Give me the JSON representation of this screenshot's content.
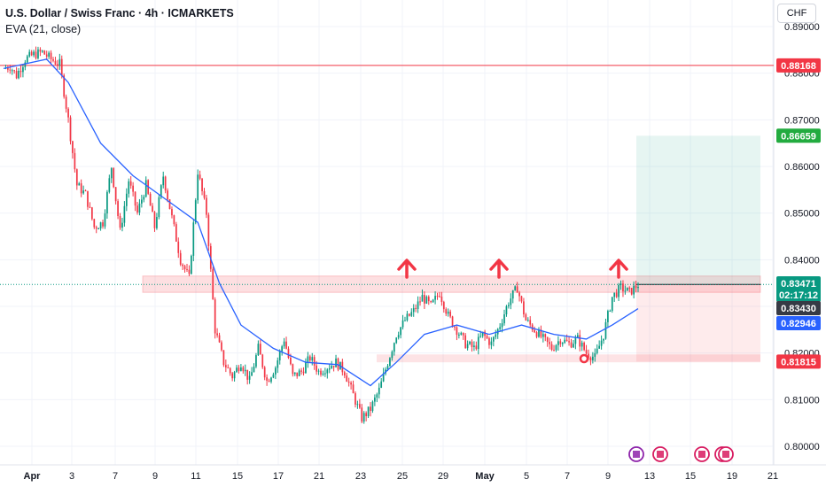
{
  "header": {
    "title": "U.S. Dollar / Swiss Franc · 4h · ICMARKETS",
    "indicator": "EVA (21, close)"
  },
  "currency_button": "CHF",
  "colors": {
    "up": "#089981",
    "down": "#f23645",
    "ema": "#2962ff",
    "resistance_line": "#f23645",
    "target_green": "#089981",
    "stop_red": "#f23645",
    "arrow": "#f23645"
  },
  "price_tags": {
    "top_level": "0.88168",
    "target": "0.86659",
    "last": "0.83471",
    "countdown": "02:17:12",
    "prev": "0.83430",
    "ema": "0.82946",
    "stop": "0.81815"
  },
  "chart_data": {
    "type": "candlestick",
    "title": "U.S. Dollar / Swiss Franc · 4h · ICMARKETS",
    "timeframe": "4h",
    "ylim": [
      0.7975,
      0.8995
    ],
    "y_ticks": [
      "0.80000",
      "0.81000",
      "0.82000",
      "0.83000",
      "0.84000",
      "0.85000",
      "0.86000",
      "0.87000",
      "0.88000",
      "0.89000"
    ],
    "x_ticks": [
      "Apr",
      "3",
      "7",
      "9",
      "11",
      "15",
      "17",
      "21",
      "23",
      "25",
      "29",
      "May",
      "5",
      "7",
      "9",
      "13",
      "15",
      "19",
      "21"
    ],
    "grid": true,
    "series": [
      {
        "name": "USDCHF",
        "close_path": [
          [
            0,
            0.881
          ],
          [
            3,
            0.8815
          ],
          [
            6,
            0.8795
          ],
          [
            10,
            0.883
          ],
          [
            14,
            0.884
          ],
          [
            18,
            0.8845
          ],
          [
            22,
            0.883
          ],
          [
            26,
            0.882
          ],
          [
            30,
            0.87
          ],
          [
            34,
            0.856
          ],
          [
            38,
            0.854
          ],
          [
            42,
            0.847
          ],
          [
            46,
            0.848
          ],
          [
            50,
            0.86
          ],
          [
            54,
            0.846
          ],
          [
            58,
            0.857
          ],
          [
            62,
            0.85
          ],
          [
            66,
            0.856
          ],
          [
            70,
            0.847
          ],
          [
            74,
            0.858
          ],
          [
            78,
            0.849
          ],
          [
            82,
            0.84
          ],
          [
            86,
            0.836
          ],
          [
            90,
            0.859
          ],
          [
            94,
            0.85
          ],
          [
            98,
            0.825
          ],
          [
            102,
            0.818
          ],
          [
            106,
            0.815
          ],
          [
            110,
            0.818
          ],
          [
            114,
            0.814
          ],
          [
            118,
            0.821
          ],
          [
            122,
            0.814
          ],
          [
            126,
            0.817
          ],
          [
            130,
            0.823
          ],
          [
            134,
            0.815
          ],
          [
            138,
            0.816
          ],
          [
            142,
            0.819
          ],
          [
            146,
            0.816
          ],
          [
            150,
            0.817
          ],
          [
            154,
            0.818
          ],
          [
            158,
            0.816
          ],
          [
            162,
            0.811
          ],
          [
            166,
            0.806
          ],
          [
            170,
            0.808
          ],
          [
            174,
            0.812
          ],
          [
            178,
            0.818
          ],
          [
            182,
            0.824
          ],
          [
            186,
            0.827
          ],
          [
            190,
            0.829
          ],
          [
            194,
            0.832
          ],
          [
            198,
            0.83
          ],
          [
            202,
            0.833
          ],
          [
            206,
            0.828
          ],
          [
            210,
            0.825
          ],
          [
            214,
            0.822
          ],
          [
            218,
            0.821
          ],
          [
            222,
            0.824
          ],
          [
            226,
            0.822
          ],
          [
            230,
            0.826
          ],
          [
            234,
            0.831
          ],
          [
            238,
            0.834
          ],
          [
            242,
            0.827
          ],
          [
            246,
            0.825
          ],
          [
            250,
            0.823
          ],
          [
            254,
            0.821
          ],
          [
            258,
            0.823
          ],
          [
            262,
            0.822
          ],
          [
            266,
            0.823
          ],
          [
            270,
            0.82
          ],
          [
            274,
            0.819
          ],
          [
            278,
            0.824
          ],
          [
            282,
            0.832
          ],
          [
            286,
            0.834
          ],
          [
            290,
            0.833
          ],
          [
            294,
            0.8347
          ]
        ]
      },
      {
        "name": "EVA (21, close)",
        "values": [
          [
            0,
            0.881
          ],
          [
            20,
            0.883
          ],
          [
            30,
            0.878
          ],
          [
            45,
            0.865
          ],
          [
            60,
            0.858
          ],
          [
            75,
            0.853
          ],
          [
            90,
            0.848
          ],
          [
            100,
            0.835
          ],
          [
            110,
            0.826
          ],
          [
            125,
            0.821
          ],
          [
            140,
            0.818
          ],
          [
            155,
            0.8175
          ],
          [
            170,
            0.813
          ],
          [
            182,
            0.818
          ],
          [
            195,
            0.824
          ],
          [
            210,
            0.826
          ],
          [
            225,
            0.824
          ],
          [
            240,
            0.826
          ],
          [
            255,
            0.824
          ],
          [
            270,
            0.823
          ],
          [
            282,
            0.826
          ],
          [
            294,
            0.8295
          ]
        ]
      }
    ],
    "levels": [
      {
        "label": "0.88168",
        "value": 0.88168,
        "type": "horizontal-line"
      },
      {
        "label": "0.86659",
        "value": 0.86659,
        "type": "target"
      },
      {
        "label": "0.81815",
        "value": 0.81815,
        "type": "stop"
      }
    ],
    "zones": [
      {
        "name": "resistance",
        "from": 0.833,
        "to": 0.8365
      },
      {
        "name": "support",
        "from": 0.818,
        "to": 0.8197
      }
    ],
    "annotations": [
      {
        "type": "up-arrow",
        "count": 3
      },
      {
        "type": "circle",
        "value": 0.818
      }
    ]
  }
}
